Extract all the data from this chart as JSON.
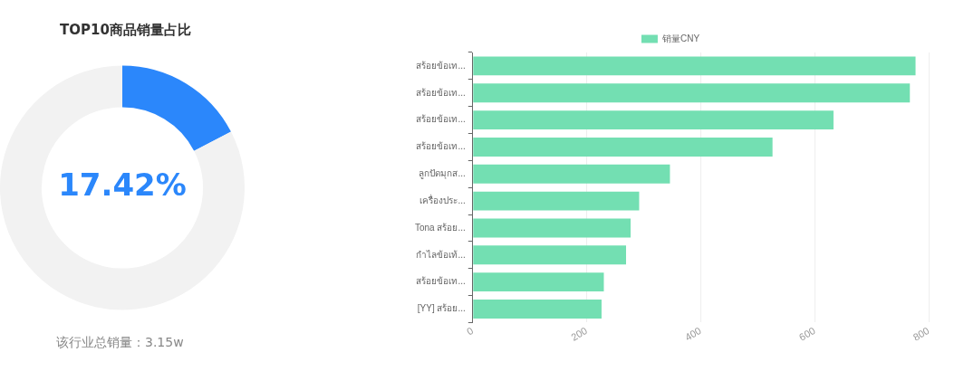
{
  "chart_data": [
    {
      "type": "donut",
      "title": "TOP10商品销量占比",
      "categories": [
        null,
        null
      ],
      "values": [
        17.42,
        82.58
      ],
      "colors": [
        "#2b87fb",
        "#f2f2f2"
      ],
      "value_labels": [
        "17.42%",
        null
      ],
      "annotations": [
        "该行业总销量：3.15w"
      ]
    },
    {
      "type": "bar",
      "orientation": "horizontal",
      "categories": [
        "สร้อยข้อเท...",
        "สร้อยข้อเท...",
        "สร้อยข้อเท...",
        "สร้อยข้อเท...",
        "ลูกปัดมุกส...",
        "เครื่องประ...",
        "Tona สร้อย...",
        "กำไลข้อเท้...",
        "สร้อยข้อเท...",
        "[YY] สร้อย..."
      ],
      "series": [
        {
          "name": "销量CNY",
          "color": "#73dfb2",
          "values": [
            777,
            767,
            633,
            526,
            346,
            292,
            277,
            269,
            230,
            226
          ]
        }
      ],
      "xlim": [
        0,
        800
      ],
      "xticks": [
        0,
        200,
        400,
        600,
        800
      ],
      "grid": "x",
      "legend": "top"
    }
  ]
}
